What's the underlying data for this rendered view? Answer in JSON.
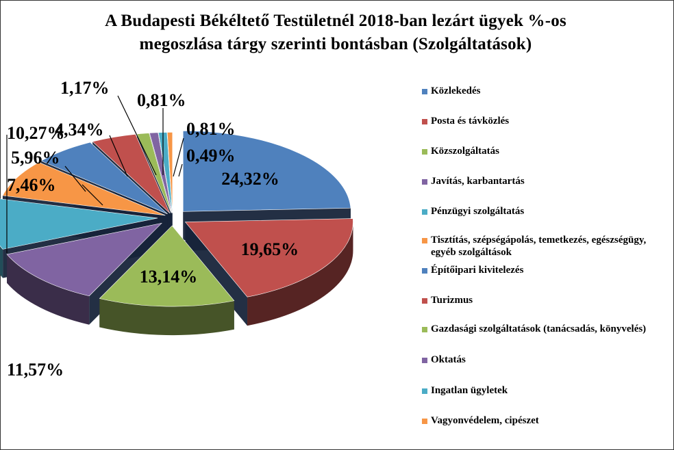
{
  "chart_data": {
    "type": "pie",
    "title_lines": [
      "A Budapesti Békéltető Testületnél 2018-ban lezárt ügyek %-os",
      "megoszlása tárgy szerinti bontásban (Szolgáltatások)"
    ],
    "style": "3d-exploded",
    "legend_position": "right",
    "slices": [
      {
        "label": "Közlekedés",
        "value": 24.32,
        "value_label": "24,32%",
        "color": "#4F81BD"
      },
      {
        "label": "Posta és távközlés",
        "value": 19.65,
        "value_label": "19,65%",
        "color": "#C0504D"
      },
      {
        "label": "Közszolgáltatás",
        "value": 13.14,
        "value_label": "13,14%",
        "color": "#9BBB59"
      },
      {
        "label": "Javítás, karbantartás",
        "value": 11.57,
        "value_label": "11,57%",
        "color": "#8064A2"
      },
      {
        "label": "Pénzügyi szolgáltatás",
        "value": 10.27,
        "value_label": "10,27%",
        "color": "#4BACC6"
      },
      {
        "label": "Tisztítás, szépségápolás, temetkezés, egészségügy, egyéb szolgáltások",
        "value": 7.46,
        "value_label": "7,46%",
        "color": "#F79646"
      },
      {
        "label": "Építőipari kivitelezés",
        "value": 5.96,
        "value_label": "5,96%",
        "color": "#4F81BD"
      },
      {
        "label": "Turizmus",
        "value": 4.34,
        "value_label": "4,34%",
        "color": "#C0504D"
      },
      {
        "label": "Gazdasági szolgáltatások (tanácsadás, könyvelés)",
        "value": 1.17,
        "value_label": "1,17%",
        "color": "#9BBB59"
      },
      {
        "label": "Oktatás",
        "value": 0.81,
        "value_label": "0,81%",
        "color": "#8064A2"
      },
      {
        "label": "Ingatlan ügyletek",
        "value": 0.81,
        "value_label": "0,81%",
        "color": "#4BACC6"
      },
      {
        "label": "Vagyonvédelem, cipészet",
        "value": 0.49,
        "value_label": "0,49%",
        "color": "#F79646"
      }
    ]
  }
}
